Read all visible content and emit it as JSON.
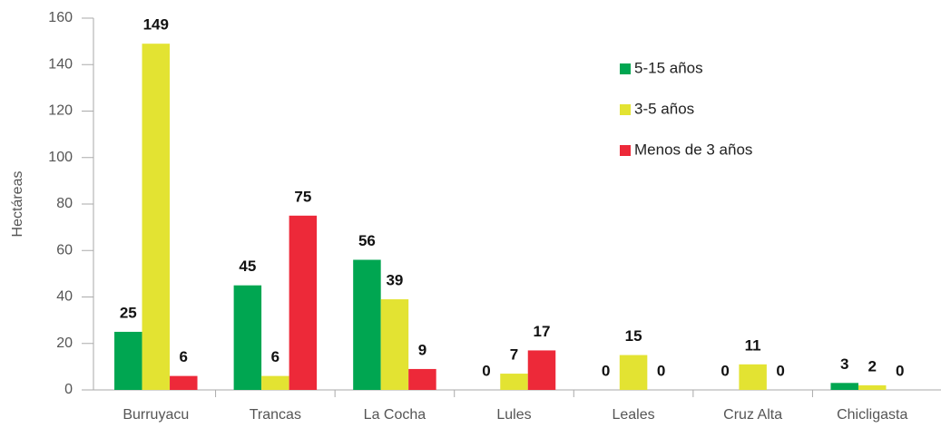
{
  "chart_data": {
    "type": "bar",
    "y_label": "Hectáreas",
    "categories": [
      "Burruyacu",
      "Trancas",
      "La Cocha",
      "Lules",
      "Leales",
      "Cruz Alta",
      "Chicligasta"
    ],
    "series": [
      {
        "name": "5-15 años",
        "color": "#00a651",
        "values": [
          25,
          45,
          56,
          0,
          0,
          0,
          3
        ]
      },
      {
        "name": "3-5 años",
        "color": "#e3e332",
        "values": [
          149,
          6,
          39,
          7,
          15,
          11,
          2
        ]
      },
      {
        "name": "Menos de 3 años",
        "color": "#ed2939",
        "values": [
          6,
          75,
          9,
          17,
          0,
          0,
          0
        ]
      }
    ],
    "ylim": [
      0,
      160
    ],
    "yticks": [
      0,
      20,
      40,
      60,
      80,
      100,
      120,
      140,
      160
    ]
  }
}
